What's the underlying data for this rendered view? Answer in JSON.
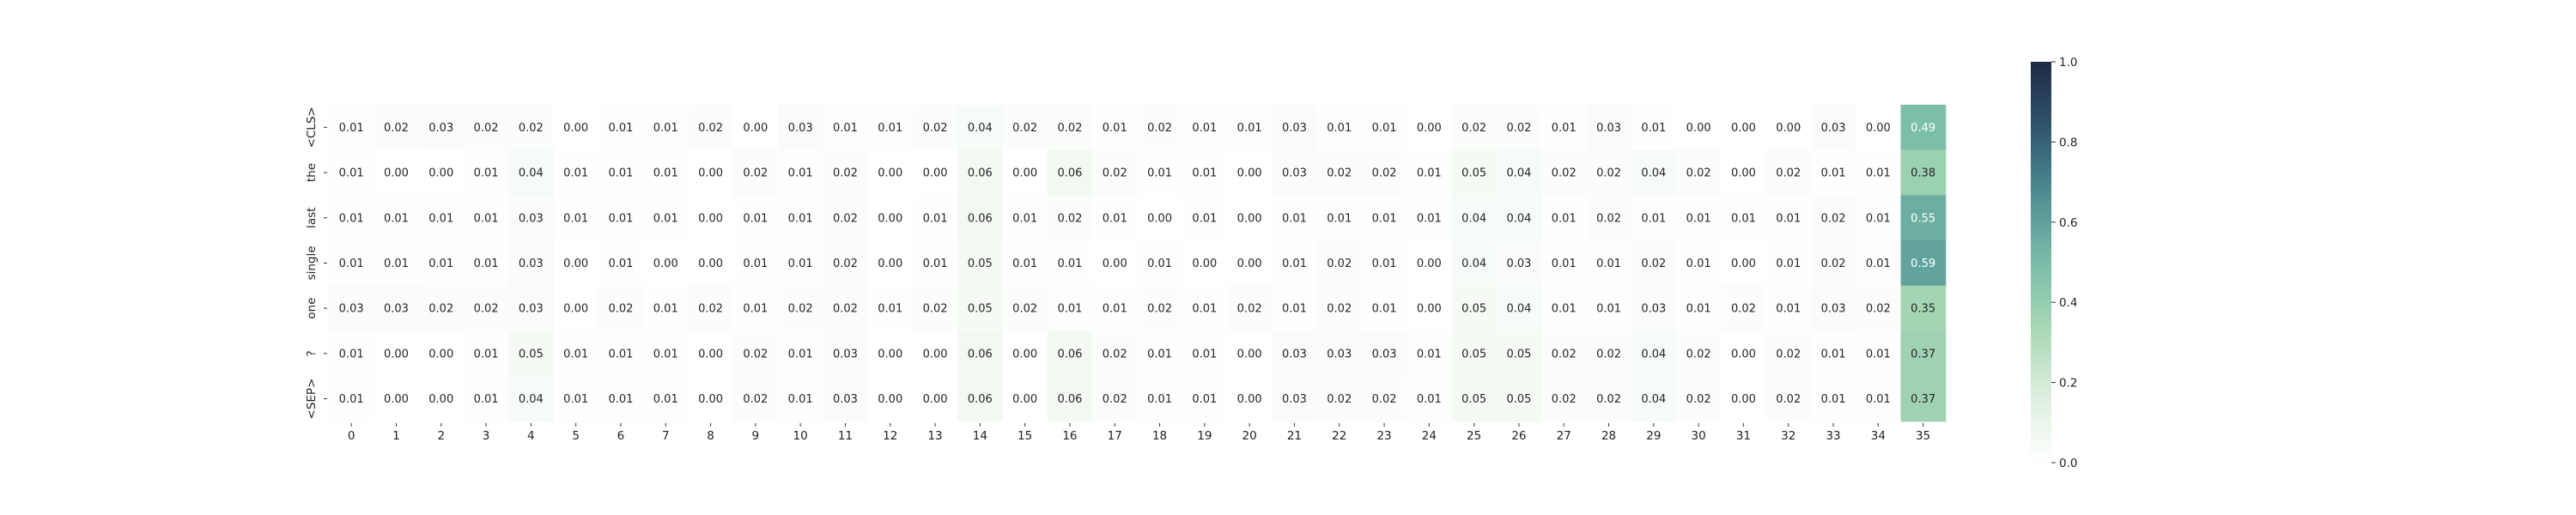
{
  "chart_data": {
    "type": "heatmap",
    "title": "",
    "xlabel": "",
    "ylabel": "",
    "x": [
      "0",
      "1",
      "2",
      "3",
      "4",
      "5",
      "6",
      "7",
      "8",
      "9",
      "10",
      "11",
      "12",
      "13",
      "14",
      "15",
      "16",
      "17",
      "18",
      "19",
      "20",
      "21",
      "22",
      "23",
      "24",
      "25",
      "26",
      "27",
      "28",
      "29",
      "30",
      "31",
      "32",
      "33",
      "34",
      "35"
    ],
    "y": [
      "<CLS>",
      "the",
      "last",
      "single",
      "one",
      "?",
      "<SEP>"
    ],
    "values": [
      [
        0.01,
        0.02,
        0.03,
        0.02,
        0.02,
        0.0,
        0.01,
        0.01,
        0.02,
        0.0,
        0.03,
        0.01,
        0.01,
        0.02,
        0.04,
        0.02,
        0.02,
        0.01,
        0.02,
        0.01,
        0.01,
        0.03,
        0.01,
        0.01,
        0.0,
        0.02,
        0.02,
        0.01,
        0.03,
        0.01,
        0.0,
        0.0,
        0.0,
        0.03,
        0.0,
        0.49
      ],
      [
        0.01,
        0.0,
        0.0,
        0.01,
        0.04,
        0.01,
        0.01,
        0.01,
        0.0,
        0.02,
        0.01,
        0.02,
        0.0,
        0.0,
        0.06,
        0.0,
        0.06,
        0.02,
        0.01,
        0.01,
        0.0,
        0.03,
        0.02,
        0.02,
        0.01,
        0.05,
        0.04,
        0.02,
        0.02,
        0.04,
        0.02,
        0.0,
        0.02,
        0.01,
        0.01,
        0.38
      ],
      [
        0.01,
        0.01,
        0.01,
        0.01,
        0.03,
        0.01,
        0.01,
        0.01,
        0.0,
        0.01,
        0.01,
        0.02,
        0.0,
        0.01,
        0.06,
        0.01,
        0.02,
        0.01,
        0.0,
        0.01,
        0.0,
        0.01,
        0.01,
        0.01,
        0.01,
        0.04,
        0.04,
        0.01,
        0.02,
        0.01,
        0.01,
        0.01,
        0.01,
        0.02,
        0.01,
        0.55
      ],
      [
        0.01,
        0.01,
        0.01,
        0.01,
        0.03,
        0.0,
        0.01,
        0.0,
        0.0,
        0.01,
        0.01,
        0.02,
        0.0,
        0.01,
        0.05,
        0.01,
        0.01,
        0.0,
        0.01,
        0.0,
        0.0,
        0.01,
        0.02,
        0.01,
        0.0,
        0.04,
        0.03,
        0.01,
        0.01,
        0.02,
        0.01,
        0.0,
        0.01,
        0.02,
        0.01,
        0.59
      ],
      [
        0.03,
        0.03,
        0.02,
        0.02,
        0.03,
        0.0,
        0.02,
        0.01,
        0.02,
        0.01,
        0.02,
        0.02,
        0.01,
        0.02,
        0.05,
        0.02,
        0.01,
        0.01,
        0.02,
        0.01,
        0.02,
        0.01,
        0.02,
        0.01,
        0.0,
        0.05,
        0.04,
        0.01,
        0.01,
        0.03,
        0.01,
        0.02,
        0.01,
        0.03,
        0.02,
        0.35
      ],
      [
        0.01,
        0.0,
        0.0,
        0.01,
        0.05,
        0.01,
        0.01,
        0.01,
        0.0,
        0.02,
        0.01,
        0.03,
        0.0,
        0.0,
        0.06,
        0.0,
        0.06,
        0.02,
        0.01,
        0.01,
        0.0,
        0.03,
        0.03,
        0.03,
        0.01,
        0.05,
        0.05,
        0.02,
        0.02,
        0.04,
        0.02,
        0.0,
        0.02,
        0.01,
        0.01,
        0.37
      ],
      [
        0.01,
        0.0,
        0.0,
        0.01,
        0.04,
        0.01,
        0.01,
        0.01,
        0.0,
        0.02,
        0.01,
        0.03,
        0.0,
        0.0,
        0.06,
        0.0,
        0.06,
        0.02,
        0.01,
        0.01,
        0.0,
        0.03,
        0.02,
        0.02,
        0.01,
        0.05,
        0.05,
        0.02,
        0.02,
        0.04,
        0.02,
        0.0,
        0.02,
        0.01,
        0.01,
        0.37
      ]
    ],
    "value_format": "2 decimals",
    "colorbar": {
      "range": [
        0.0,
        1.0
      ],
      "ticks": [
        "0.0",
        "0.2",
        "0.4",
        "0.6",
        "0.8",
        "1.0"
      ],
      "colormap": [
        "#ffffff",
        "#dceedd",
        "#a8d8b6",
        "#79bda8",
        "#4e8e92",
        "#31566f",
        "#1d2a45"
      ]
    },
    "grid": false,
    "legend": "colorbar right"
  }
}
